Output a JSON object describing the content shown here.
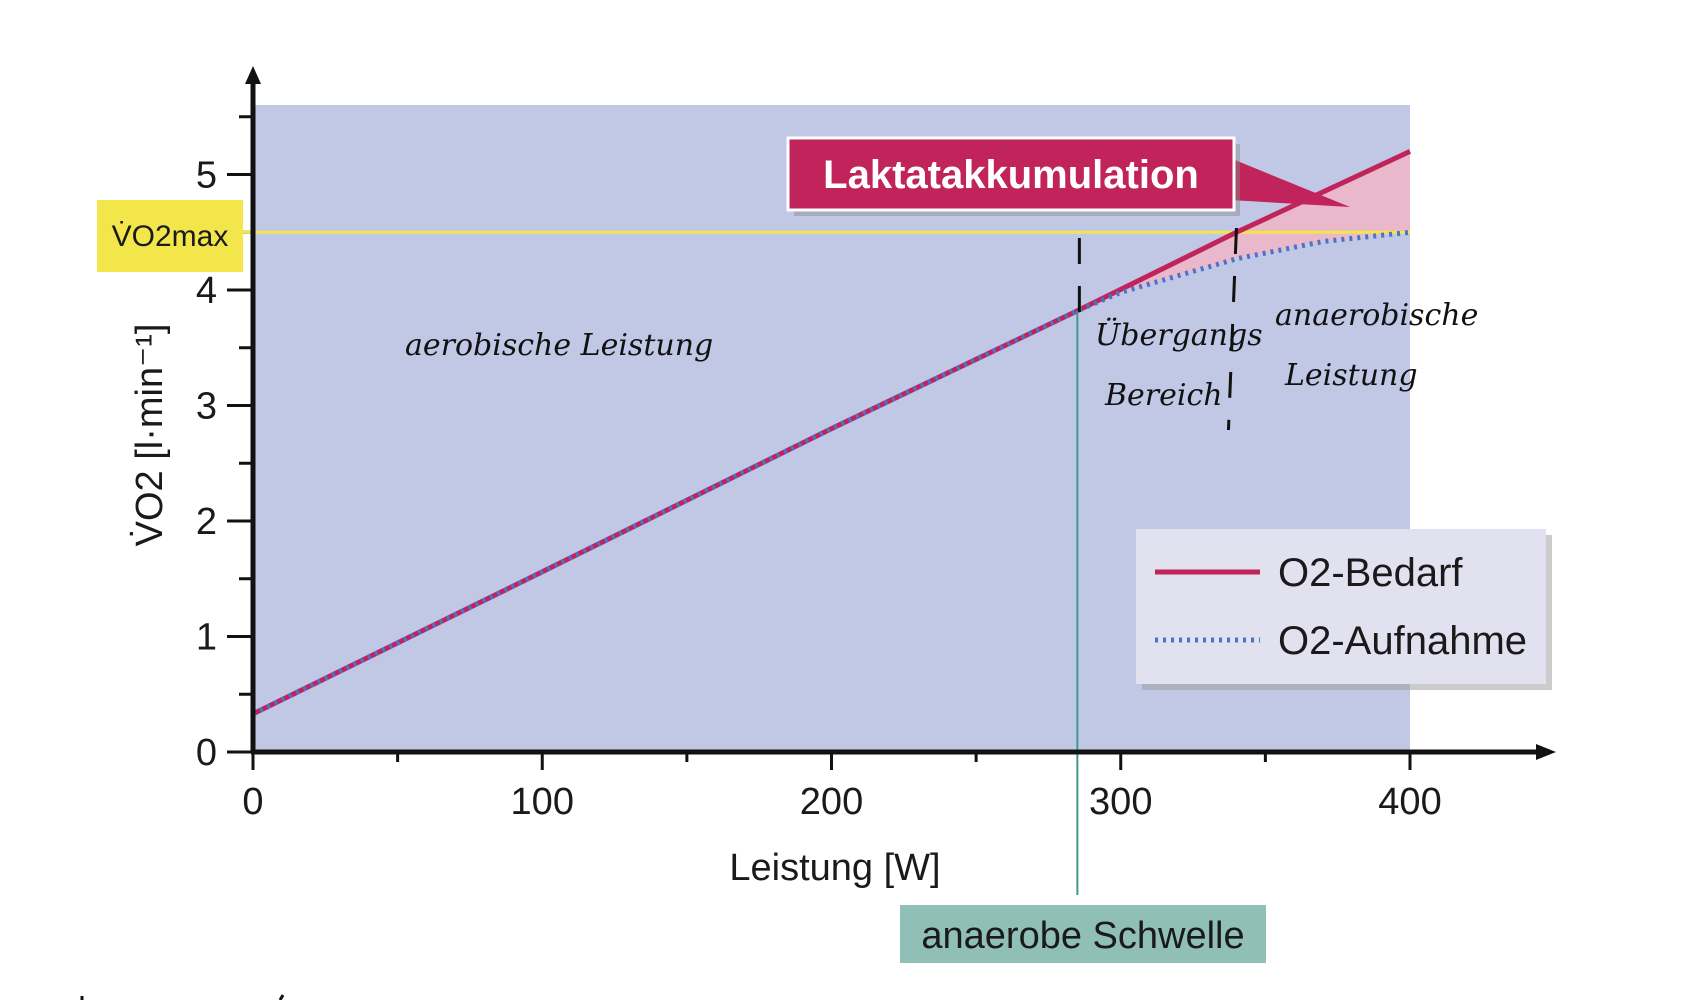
{
  "chart_data": {
    "type": "line",
    "xlabel": "Leistung [W]",
    "ylabel": "V̇O2 [l·min⁻¹]",
    "xlim": [
      0,
      400
    ],
    "ylim": [
      0,
      5.5
    ],
    "x_ticks": [
      "0",
      "100",
      "200",
      "300",
      "400"
    ],
    "y_ticks": [
      "0",
      "1",
      "2",
      "3",
      "4",
      "5"
    ],
    "legend_position": "bottom-right",
    "series": [
      {
        "name": "O2-Bedarf",
        "style": "solid",
        "color": "#c0245a",
        "x": [
          0,
          100,
          200,
          285,
          340,
          400
        ],
        "y": [
          0.33,
          1.56,
          2.8,
          3.82,
          4.5,
          5.2
        ]
      },
      {
        "name": "O2-Aufnahme",
        "style": "dotted",
        "color": "#4a74c9",
        "x": [
          0,
          100,
          200,
          285,
          300,
          340,
          370,
          400
        ],
        "y": [
          0.33,
          1.56,
          2.8,
          3.82,
          3.98,
          4.27,
          4.42,
          4.5
        ]
      }
    ],
    "vo2max": {
      "label": "V̇O2max",
      "value": 4.5,
      "color": "#f2e64a"
    },
    "anaerobic_threshold": {
      "label": "anaerobe Schwelle",
      "x": 285,
      "color": "#8fbfb7"
    },
    "transition_end_x": 340,
    "callout": {
      "label": "Laktatakkumulation",
      "color": "#c0245a"
    },
    "annotations": {
      "aerobic": "aerobische Leistung",
      "transition_line1": "Übergangs",
      "transition_line2": "Bereich",
      "anaerobic_line1": "anaerobische",
      "anaerobic_line2": "Leistung"
    },
    "colors": {
      "plot_background": "#c1c8e6",
      "accumulation_fill": "#e9b9cb",
      "axis": "#111111"
    }
  }
}
